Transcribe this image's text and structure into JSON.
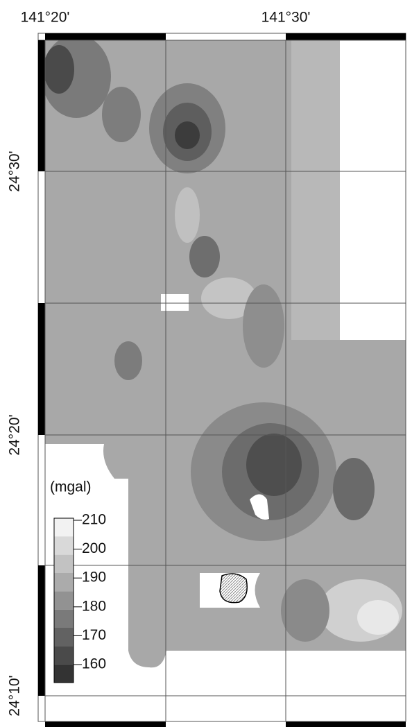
{
  "map": {
    "x_labels": [
      "141°20'",
      "141°30'"
    ],
    "y_labels": [
      "24°30'",
      "24°20'",
      "24°10'"
    ]
  },
  "legend": {
    "unit": "(mgal)",
    "ticks": [
      210,
      200,
      190,
      180,
      170,
      160
    ]
  }
}
